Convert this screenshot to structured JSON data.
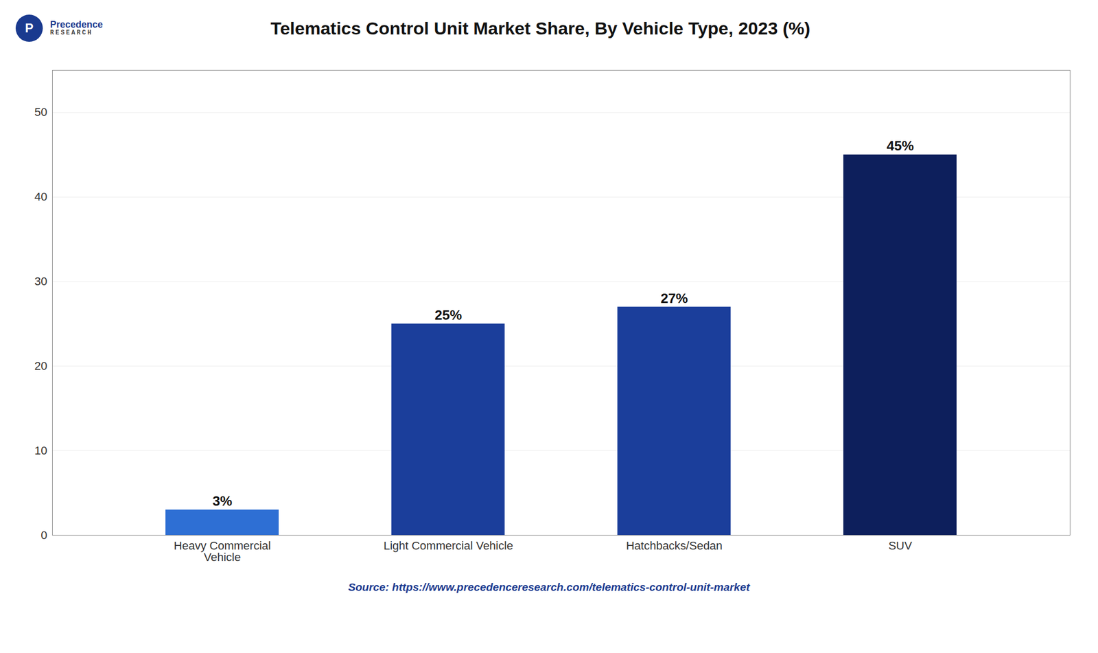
{
  "chart_data": {
    "type": "bar",
    "title": "Telematics Control Unit Market Share, By Vehicle Type, 2023 (%)",
    "categories": [
      "Heavy Commercial\nVehicle",
      "Light Commercial Vehicle",
      "Hatchbacks/Sedan",
      "SUV"
    ],
    "values": [
      3,
      25,
      27,
      45
    ],
    "value_labels": [
      "3%",
      "25%",
      "27%",
      "45%"
    ],
    "data_labels": true,
    "colors": [
      "#2E6FD4",
      "#1B3E9B",
      "#1B3E9B",
      "#0D1F5C"
    ],
    "ylim": [
      0,
      55
    ],
    "yticks": [
      0,
      10,
      20,
      30,
      40,
      50
    ],
    "grid": true,
    "source": "Source: https://www.precedenceresearch.com/telematics-control-unit-market",
    "annotations": [
      "P",
      "Precedence",
      "RESEARCH"
    ]
  }
}
